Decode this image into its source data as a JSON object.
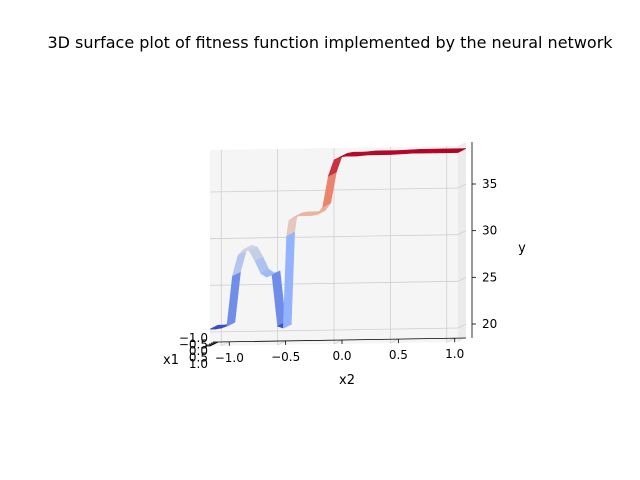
{
  "chart_data": {
    "type": "surface",
    "title": "3D surface plot of fitness function implemented by the neural network",
    "xlabel": "x1",
    "ylabel": "x2",
    "zlabel": "y",
    "xticks": [
      "−1.0",
      "−0.5",
      "0.0",
      "0.5",
      "1.0"
    ],
    "yticks": [
      "−1.0",
      "−0.5",
      "0.0",
      "0.5",
      "1.0"
    ],
    "zticks": [
      "20",
      "25",
      "30",
      "35"
    ],
    "xlim": [
      -1.0,
      1.0
    ],
    "ylim": [
      -1.1,
      1.1
    ],
    "zlim": [
      18.5,
      39.5
    ],
    "colormap": "coolwarm",
    "profile": {
      "x2": [
        -1.1,
        -1.05,
        -1.0,
        -0.95,
        -0.9,
        -0.85,
        -0.8,
        -0.75,
        -0.7,
        -0.65,
        -0.6,
        -0.55,
        -0.5,
        -0.45,
        -0.42,
        -0.4,
        -0.35,
        -0.3,
        -0.25,
        -0.2,
        -0.15,
        -0.1,
        -0.05,
        0.0,
        0.05,
        0.1,
        0.2,
        0.3,
        0.5,
        0.7,
        0.9,
        1.1
      ],
      "y": [
        20.3,
        20.3,
        20.4,
        20.6,
        26.0,
        28.2,
        28.8,
        28.6,
        27.5,
        26.2,
        25.8,
        26.0,
        20.5,
        20.3,
        30.2,
        31.8,
        32.2,
        32.3,
        32.3,
        32.3,
        32.4,
        33.2,
        36.5,
        38.2,
        38.5,
        38.6,
        38.6,
        38.7,
        38.7,
        38.8,
        38.8,
        38.8
      ]
    }
  }
}
